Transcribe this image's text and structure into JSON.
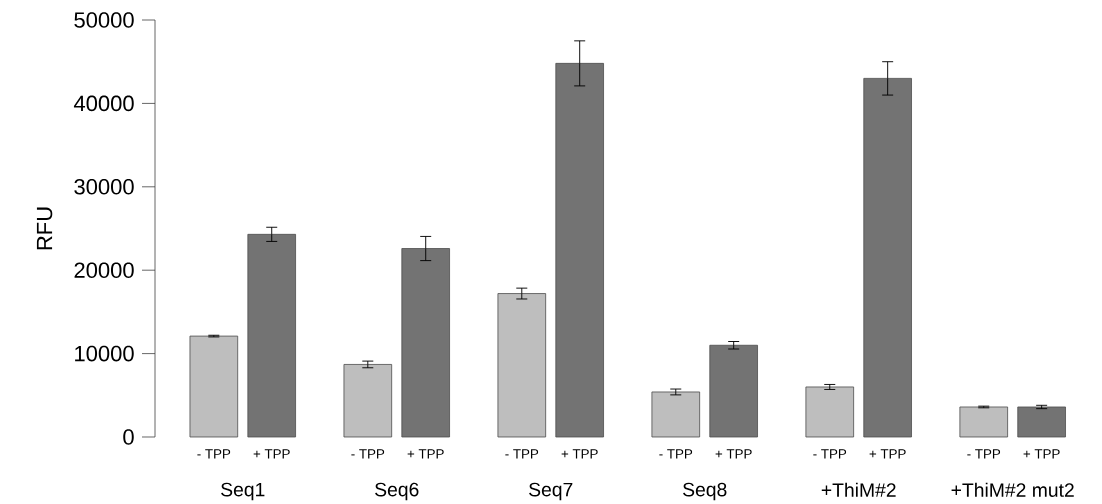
{
  "chart_data": {
    "type": "bar",
    "ylabel": "RFU",
    "categories": [
      "Seq1",
      "Seq6",
      "Seq7",
      "Seq8",
      "+ThiM#2",
      "+ThiM#2 mut2"
    ],
    "series": [
      {
        "name": "- TPP",
        "color": "#bebebe",
        "values": [
          12100,
          8700,
          17200,
          5400,
          6000,
          3600
        ],
        "errors": [
          100,
          400,
          650,
          350,
          300,
          100
        ]
      },
      {
        "name": "+ TPP",
        "color": "#737373",
        "values": [
          24300,
          22600,
          44800,
          11000,
          43000,
          3600
        ],
        "errors": [
          850,
          1450,
          2700,
          450,
          2000,
          200
        ]
      }
    ],
    "ylim": [
      0,
      50000
    ],
    "yticks": [
      0,
      10000,
      20000,
      30000,
      40000,
      50000
    ]
  }
}
